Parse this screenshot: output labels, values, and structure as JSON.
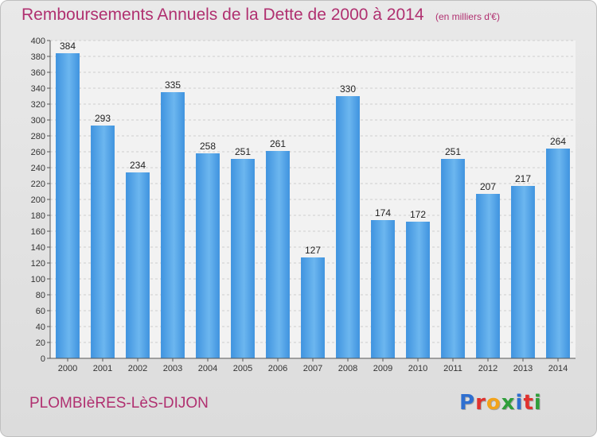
{
  "chart_data": {
    "type": "bar",
    "title": "Remboursements Annuels de la Dette de 2000 à 2014",
    "unit_note": "(en milliers d'€)",
    "categories": [
      "2000",
      "2001",
      "2002",
      "2003",
      "2004",
      "2005",
      "2006",
      "2007",
      "2008",
      "2009",
      "2010",
      "2011",
      "2012",
      "2013",
      "2014"
    ],
    "values": [
      384,
      293,
      234,
      335,
      258,
      251,
      261,
      127,
      330,
      174,
      172,
      251,
      207,
      217,
      264
    ],
    "ylim": [
      0,
      400
    ],
    "ytick_step": 20,
    "grid": true,
    "xlabel": "",
    "ylabel": "",
    "bar_color": "#3f93df",
    "bar_color_light": "#6cb6ef"
  },
  "footer": {
    "city": "PLOMBIèRES-LèS-DIJON",
    "brand": [
      "P",
      "r",
      "o",
      "x",
      "i",
      "t",
      "i"
    ]
  }
}
